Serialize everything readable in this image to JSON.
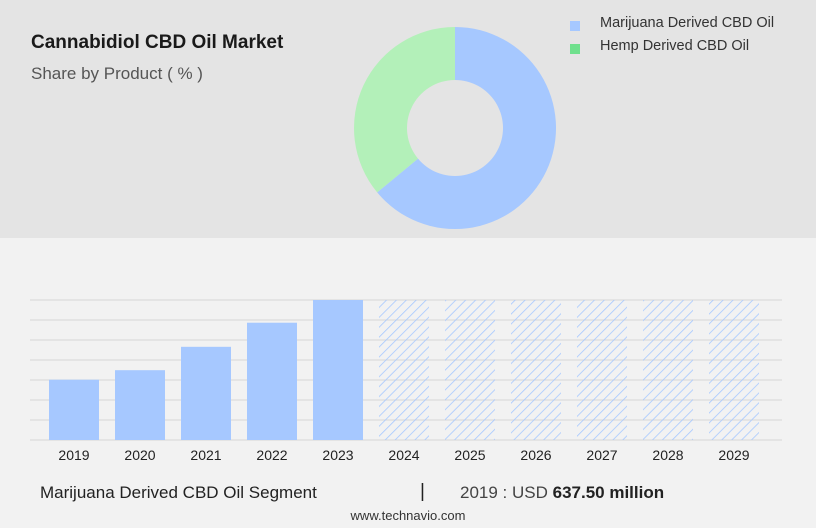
{
  "header": {
    "title": "Cannabidiol CBD Oil Market",
    "subtitle": "Share by Product ( % )"
  },
  "colors": {
    "marijuana": "#a6c8ff",
    "hemp": "#b3f0b9",
    "hemp_legend": "#6fe08d",
    "bar": "#a6c8ff",
    "hatch": "#a6c8ff"
  },
  "chart_data": [
    {
      "type": "pie",
      "title": "Share by Product ( % )",
      "hole": true,
      "series": [
        {
          "name": "Marijuana Derived CBD Oil",
          "value": 64
        },
        {
          "name": "Hemp Derived CBD Oil",
          "value": 36
        }
      ],
      "legend": "top-right"
    },
    {
      "type": "bar",
      "categories": [
        "2019",
        "2020",
        "2021",
        "2022",
        "2023",
        "2024",
        "2025",
        "2026",
        "2027",
        "2028",
        "2029"
      ],
      "values": [
        637.5,
        738,
        985,
        1240,
        1480,
        null,
        null,
        null,
        null,
        null,
        null
      ],
      "forecast_categories": [
        "2024",
        "2025",
        "2026",
        "2027",
        "2028",
        "2029"
      ],
      "ylim": [
        0,
        1480
      ],
      "grid": true
    }
  ],
  "footer": {
    "segment": "Marijuana Derived CBD Oil Segment",
    "separator": "|",
    "year_label": "2019 : USD",
    "value": "637.50 million",
    "source": "www.technavio.com"
  }
}
